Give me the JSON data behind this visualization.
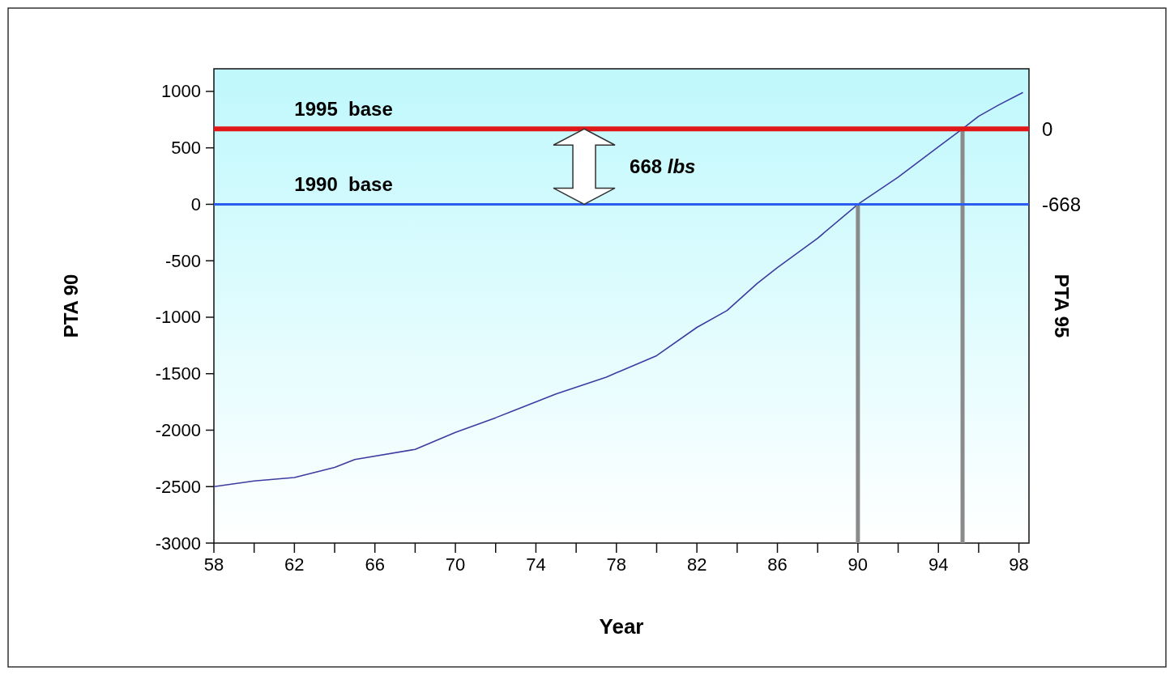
{
  "chart_data": {
    "type": "line",
    "xlabel": "Year",
    "ylabel": "PTA 90",
    "y2label": "PTA 95",
    "xlim": [
      58,
      98.5
    ],
    "xticks": [
      58,
      {
        "value": 60,
        "label": null
      },
      62,
      {
        "value": 64,
        "label": null
      },
      66,
      {
        "value": 68,
        "label": null
      },
      70,
      {
        "value": 72,
        "label": null
      },
      74,
      {
        "value": 76,
        "label": null
      },
      78,
      {
        "value": 80,
        "label": null
      },
      82,
      {
        "value": 84,
        "label": null
      },
      86,
      {
        "value": 88,
        "label": null
      },
      90,
      {
        "value": 92,
        "label": null
      },
      94,
      {
        "value": 96,
        "label": null
      },
      98
    ],
    "ylim": [
      -3000,
      1200
    ],
    "yticks": [
      -3000,
      -2500,
      -2000,
      -1500,
      -1000,
      -500,
      0,
      500,
      1000
    ],
    "y2lim": [
      -3668,
      532
    ],
    "y2ticks": [
      {
        "value": 0,
        "label": "0"
      },
      {
        "value": -668,
        "label": "-668"
      }
    ],
    "grid": false,
    "series": [
      {
        "color": "#3c3ca0",
        "x": [
          58,
          60,
          62,
          64,
          65,
          68,
          70,
          72,
          75,
          77.5,
          80,
          82,
          83.5,
          85,
          86,
          88,
          90,
          92,
          94,
          95.2,
          96,
          97,
          98.2
        ],
        "values": [
          -2500,
          -2450,
          -2420,
          -2330,
          -2260,
          -2170,
          -2020,
          -1890,
          -1680,
          -1530,
          -1340,
          -1090,
          -940,
          -700,
          -560,
          -300,
          0,
          240,
          510,
          668,
          780,
          880,
          990
        ]
      },
      {
        "color": "#8a8a8a",
        "x": [
          90,
          90
        ],
        "values": [
          -3000,
          0
        ]
      },
      {
        "color": "#8a8a8a",
        "x": [
          95.2,
          95.2
        ],
        "values": [
          -3000,
          668
        ]
      }
    ],
    "ref_lines": [
      {
        "axis": "y",
        "value": 668,
        "label": "1995  base",
        "color": "#e01818"
      },
      {
        "axis": "y",
        "value": 0,
        "label": "1990  base",
        "color": "#2a5cf0"
      }
    ],
    "annotations": [
      "668 lbs"
    ]
  }
}
